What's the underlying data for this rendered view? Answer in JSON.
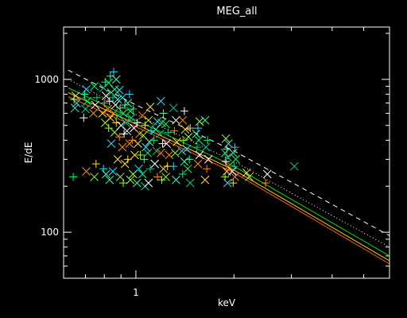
{
  "chart_data": {
    "type": "scatter",
    "title": "MEG_all",
    "xlabel": "keV",
    "ylabel": "E/dE",
    "x_scale": "log",
    "y_scale": "log",
    "xlim": [
      0.6,
      6.0
    ],
    "ylim": [
      50,
      2200
    ],
    "grid": false,
    "legend": "none",
    "x_tick_labels": [
      {
        "value": 1,
        "label": "1"
      }
    ],
    "y_tick_labels": [
      {
        "value": 100,
        "label": "100"
      },
      {
        "value": 1000,
        "label": "1000"
      }
    ],
    "lines": [
      {
        "style": "dashed",
        "color": "#ffffff",
        "x": [
          0.62,
          1.0,
          2.0,
          6.0
        ],
        "y": [
          1150,
          680,
          340,
          95
        ]
      },
      {
        "style": "dotted",
        "color": "#ffffff",
        "x": [
          0.62,
          1.0,
          2.0,
          6.0
        ],
        "y": [
          1000,
          590,
          290,
          80
        ]
      },
      {
        "style": "solid",
        "color": "#00dd00",
        "x": [
          0.62,
          1.0,
          2.0,
          6.0
        ],
        "y": [
          880,
          540,
          270,
          70
        ]
      },
      {
        "style": "solid",
        "color": "#ffcc00",
        "x": [
          0.62,
          1.0,
          2.0,
          6.0
        ],
        "y": [
          820,
          510,
          255,
          65
        ]
      },
      {
        "style": "solid",
        "color": "#ff5a1a",
        "x": [
          0.62,
          1.0,
          2.0,
          6.0
        ],
        "y": [
          770,
          490,
          245,
          62
        ]
      }
    ],
    "clusters": [
      {
        "x": 0.65,
        "y": [
          230,
          650,
          700,
          740,
          780
        ]
      },
      {
        "x": 0.7,
        "y": [
          250,
          560,
          640,
          720,
          800,
          860
        ]
      },
      {
        "x": 0.75,
        "y": [
          230,
          280,
          600,
          680,
          760,
          900
        ]
      },
      {
        "x": 0.8,
        "y": [
          240,
          260,
          520,
          600,
          700,
          780,
          880,
          960
        ]
      },
      {
        "x": 0.83,
        "y": [
          220,
          380,
          480,
          560,
          640,
          720,
          820,
          950,
          1050
        ]
      },
      {
        "x": 0.86,
        "y": [
          250,
          450,
          520,
          600,
          680,
          760,
          860,
          1000,
          1120
        ]
      },
      {
        "x": 0.89,
        "y": [
          230,
          300,
          420,
          500,
          580,
          650,
          740,
          850
        ]
      },
      {
        "x": 0.92,
        "y": [
          210,
          280,
          360,
          440,
          520,
          600,
          680,
          760
        ]
      },
      {
        "x": 0.95,
        "y": [
          220,
          300,
          380,
          460,
          540,
          620,
          700,
          800
        ]
      },
      {
        "x": 0.98,
        "y": [
          240,
          320,
          400,
          480,
          560,
          640
        ]
      },
      {
        "x": 1.02,
        "y": [
          210,
          260,
          320,
          380,
          440,
          520
        ]
      },
      {
        "x": 1.06,
        "y": [
          200,
          240,
          300,
          360,
          430,
          500,
          580
        ]
      },
      {
        "x": 1.1,
        "y": [
          210,
          260,
          330,
          390,
          460,
          540,
          660
        ]
      },
      {
        "x": 1.15,
        "y": [
          230,
          280,
          340,
          400,
          470,
          530
        ]
      },
      {
        "x": 1.2,
        "y": [
          220,
          260,
          330,
          380,
          440,
          520,
          600,
          720
        ]
      },
      {
        "x": 1.25,
        "y": [
          230,
          270,
          320,
          380,
          450,
          510
        ]
      },
      {
        "x": 1.32,
        "y": [
          220,
          270,
          330,
          390,
          460,
          540,
          650
        ]
      },
      {
        "x": 1.4,
        "y": [
          240,
          290,
          340,
          400,
          470,
          540,
          620
        ]
      },
      {
        "x": 1.45,
        "y": [
          210,
          260,
          300,
          350,
          420,
          480
        ]
      },
      {
        "x": 1.55,
        "y": [
          280,
          320,
          360,
          400,
          440,
          480,
          530
        ]
      },
      {
        "x": 1.65,
        "y": [
          220,
          260,
          300,
          360,
          400,
          540
        ]
      },
      {
        "x": 1.9,
        "y": [
          210,
          230,
          250,
          270,
          290,
          310,
          330,
          350,
          380,
          410
        ]
      },
      {
        "x": 2.0,
        "y": [
          210,
          230,
          250,
          270,
          300,
          330,
          360
        ]
      },
      {
        "x": 2.2,
        "y": [
          230,
          245
        ]
      },
      {
        "x": 2.5,
        "y": [
          210,
          240
        ]
      },
      {
        "x": 3.1,
        "y": [
          270
        ]
      }
    ],
    "point_colors": [
      "#00ff66",
      "#33ffaa",
      "#22ddff",
      "#99ff33",
      "#ffe033",
      "#ff8a1a",
      "#ffffff",
      "#00cc88"
    ]
  }
}
